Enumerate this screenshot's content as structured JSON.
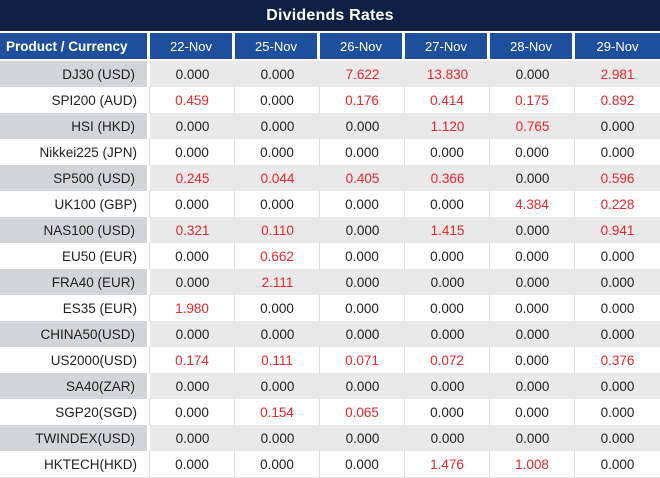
{
  "title": "Dividends Rates",
  "table": {
    "label_header": "Product / Currency",
    "date_headers": [
      "22-Nov",
      "25-Nov",
      "26-Nov",
      "27-Nov",
      "28-Nov",
      "29-Nov"
    ],
    "rows": [
      {
        "product": "DJ30 (USD)",
        "values": [
          "0.000",
          "0.000",
          "7.622",
          "13.830",
          "0.000",
          "2.981"
        ]
      },
      {
        "product": "SPI200 (AUD)",
        "values": [
          "0.459",
          "0.000",
          "0.176",
          "0.414",
          "0.175",
          "0.892"
        ]
      },
      {
        "product": "HSI (HKD)",
        "values": [
          "0.000",
          "0.000",
          "0.000",
          "1.120",
          "0.765",
          "0.000"
        ]
      },
      {
        "product": "Nikkei225 (JPN)",
        "values": [
          "0.000",
          "0.000",
          "0.000",
          "0.000",
          "0.000",
          "0.000"
        ]
      },
      {
        "product": "SP500 (USD)",
        "values": [
          "0.245",
          "0.044",
          "0.405",
          "0.366",
          "0.000",
          "0.596"
        ]
      },
      {
        "product": "UK100 (GBP)",
        "values": [
          "0.000",
          "0.000",
          "0.000",
          "0.000",
          "4.384",
          "0.228"
        ]
      },
      {
        "product": "NAS100 (USD)",
        "values": [
          "0.321",
          "0.110",
          "0.000",
          "1.415",
          "0.000",
          "0.941"
        ]
      },
      {
        "product": "EU50 (EUR)",
        "values": [
          "0.000",
          "0.662",
          "0.000",
          "0.000",
          "0.000",
          "0.000"
        ]
      },
      {
        "product": "FRA40 (EUR)",
        "values": [
          "0.000",
          "2.111",
          "0.000",
          "0.000",
          "0.000",
          "0.000"
        ]
      },
      {
        "product": "ES35 (EUR)",
        "values": [
          "1.980",
          "0.000",
          "0.000",
          "0.000",
          "0.000",
          "0.000"
        ]
      },
      {
        "product": "CHINA50(USD)",
        "values": [
          "0.000",
          "0.000",
          "0.000",
          "0.000",
          "0.000",
          "0.000"
        ]
      },
      {
        "product": "US2000(USD)",
        "values": [
          "0.174",
          "0.111",
          "0.071",
          "0.072",
          "0.000",
          "0.376"
        ]
      },
      {
        "product": "SA40(ZAR)",
        "values": [
          "0.000",
          "0.000",
          "0.000",
          "0.000",
          "0.000",
          "0.000"
        ]
      },
      {
        "product": "SGP20(SGD)",
        "values": [
          "0.000",
          "0.154",
          "0.065",
          "0.000",
          "0.000",
          "0.000"
        ]
      },
      {
        "product": "TWINDEX(USD)",
        "values": [
          "0.000",
          "0.000",
          "0.000",
          "0.000",
          "0.000",
          "0.000"
        ]
      },
      {
        "product": "HKTECH(HKD)",
        "values": [
          "0.000",
          "0.000",
          "0.000",
          "1.476",
          "1.008",
          "0.000"
        ]
      }
    ]
  },
  "colors": {
    "title_bg": "#0e2044",
    "header_bg": "#1e4f9c",
    "stripe_label_bg": "#d3d5d7",
    "stripe_data_bg": "#e9e9e9",
    "plain_divider": "#dcdcdc",
    "zero_value_text": "#1e1e1e",
    "nonzero_value_text": "#e8262b"
  },
  "chart_data": {
    "type": "table",
    "title": "Dividends Rates",
    "columns": [
      "Product / Currency",
      "22-Nov",
      "25-Nov",
      "26-Nov",
      "27-Nov",
      "28-Nov",
      "29-Nov"
    ],
    "rows": [
      [
        "DJ30 (USD)",
        0.0,
        0.0,
        7.622,
        13.83,
        0.0,
        2.981
      ],
      [
        "SPI200 (AUD)",
        0.459,
        0.0,
        0.176,
        0.414,
        0.175,
        0.892
      ],
      [
        "HSI (HKD)",
        0.0,
        0.0,
        0.0,
        1.12,
        0.765,
        0.0
      ],
      [
        "Nikkei225 (JPN)",
        0.0,
        0.0,
        0.0,
        0.0,
        0.0,
        0.0
      ],
      [
        "SP500 (USD)",
        0.245,
        0.044,
        0.405,
        0.366,
        0.0,
        0.596
      ],
      [
        "UK100 (GBP)",
        0.0,
        0.0,
        0.0,
        0.0,
        4.384,
        0.228
      ],
      [
        "NAS100 (USD)",
        0.321,
        0.11,
        0.0,
        1.415,
        0.0,
        0.941
      ],
      [
        "EU50 (EUR)",
        0.0,
        0.662,
        0.0,
        0.0,
        0.0,
        0.0
      ],
      [
        "FRA40 (EUR)",
        0.0,
        2.111,
        0.0,
        0.0,
        0.0,
        0.0
      ],
      [
        "ES35 (EUR)",
        1.98,
        0.0,
        0.0,
        0.0,
        0.0,
        0.0
      ],
      [
        "CHINA50(USD)",
        0.0,
        0.0,
        0.0,
        0.0,
        0.0,
        0.0
      ],
      [
        "US2000(USD)",
        0.174,
        0.111,
        0.071,
        0.072,
        0.0,
        0.376
      ],
      [
        "SA40(ZAR)",
        0.0,
        0.0,
        0.0,
        0.0,
        0.0,
        0.0
      ],
      [
        "SGP20(SGD)",
        0.0,
        0.154,
        0.065,
        0.0,
        0.0,
        0.0
      ],
      [
        "TWINDEX(USD)",
        0.0,
        0.0,
        0.0,
        0.0,
        0.0,
        0.0
      ],
      [
        "HKTECH(HKD)",
        0.0,
        0.0,
        0.0,
        1.476,
        1.008,
        0.0
      ]
    ],
    "notes": "Non-zero values rendered in red, zero values in black. Rows alternate gray/white striping."
  }
}
